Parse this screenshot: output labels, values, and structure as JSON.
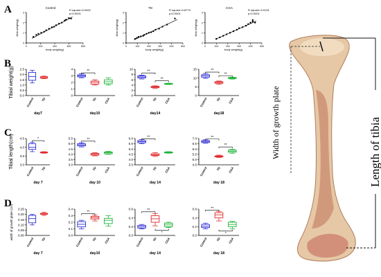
{
  "panel_letters": {
    "A": "A",
    "B": "B",
    "C": "C",
    "D": "D"
  },
  "colors": {
    "Control": "#2b2bd6",
    "TD": "#e0272b",
    "CGA": "#1fb33a",
    "bone": "#e8c9a8",
    "bone_dark": "#b86a4f"
  },
  "photo": {
    "label_length": "Length of tibia",
    "label_width": "Width of growth plate"
  },
  "chart_data": [
    {
      "type": "scatter",
      "panel": "A",
      "title": "Control",
      "xlabel": "body weight(g)",
      "ylabel": "tibia weight(g)",
      "annotation": [
        "R square=0.9492",
        "p<0.0001"
      ],
      "xticks": [
        "0",
        "200",
        "400",
        "600",
        "800"
      ],
      "xlim": [
        0,
        800
      ],
      "yticks": [
        "0",
        "1",
        "2",
        "3"
      ],
      "ylim": [
        0,
        3
      ],
      "points": [
        [
          100,
          0.6
        ],
        [
          140,
          0.8
        ],
        [
          170,
          0.9
        ],
        [
          210,
          1.0
        ],
        [
          250,
          1.1
        ],
        [
          280,
          1.25
        ],
        [
          320,
          1.4
        ],
        [
          360,
          1.55
        ],
        [
          390,
          1.6
        ],
        [
          420,
          1.75
        ],
        [
          460,
          1.9
        ],
        [
          500,
          2.0
        ],
        [
          540,
          2.2
        ],
        [
          560,
          2.3
        ],
        [
          600,
          2.45
        ],
        [
          630,
          2.4
        ]
      ],
      "fit": [
        [
          80,
          0.45
        ],
        [
          650,
          2.55
        ]
      ]
    },
    {
      "type": "scatter",
      "panel": "A",
      "title": "TD",
      "xlabel": "body weight(g)",
      "ylabel": "tibia weight(g)",
      "annotation": [
        "R square=0.8779",
        "p<0.0001"
      ],
      "xticks": [
        "0",
        "100",
        "200",
        "300",
        "400",
        "500"
      ],
      "xlim": [
        0,
        500
      ],
      "yticks": [
        "0",
        "1",
        "2",
        "3"
      ],
      "ylim": [
        0,
        3
      ],
      "points": [
        [
          80,
          0.4
        ],
        [
          95,
          0.5
        ],
        [
          110,
          0.6
        ],
        [
          130,
          0.65
        ],
        [
          150,
          0.7
        ],
        [
          160,
          0.8
        ],
        [
          180,
          0.9
        ],
        [
          200,
          1.0
        ],
        [
          220,
          1.05
        ],
        [
          240,
          1.15
        ],
        [
          260,
          1.3
        ],
        [
          290,
          1.4
        ],
        [
          320,
          1.6
        ],
        [
          360,
          1.8
        ],
        [
          430,
          2.4
        ]
      ],
      "fit": [
        [
          70,
          0.3
        ],
        [
          450,
          2.3
        ]
      ]
    },
    {
      "type": "scatter",
      "panel": "A",
      "title": "CGA",
      "xlabel": "body weight(g)",
      "ylabel": "tibia weight(g)",
      "annotation": [
        "R square=0.9191",
        "p<0.0001"
      ],
      "xticks": [
        "0",
        "100",
        "200",
        "300",
        "400",
        "500"
      ],
      "xlim": [
        0,
        500
      ],
      "yticks": [
        "0",
        "1",
        "2",
        "3"
      ],
      "ylim": [
        0,
        3
      ],
      "points": [
        [
          100,
          0.4
        ],
        [
          130,
          0.55
        ],
        [
          160,
          0.7
        ],
        [
          190,
          0.85
        ],
        [
          220,
          1.0
        ],
        [
          250,
          1.15
        ],
        [
          280,
          1.3
        ],
        [
          300,
          1.45
        ],
        [
          330,
          1.55
        ],
        [
          360,
          1.7
        ],
        [
          380,
          1.85
        ],
        [
          400,
          2.0
        ],
        [
          420,
          2.1
        ],
        [
          420,
          2.25
        ],
        [
          440,
          2.0
        ]
      ],
      "fit": [
        [
          90,
          0.35
        ],
        [
          450,
          2.15
        ]
      ]
    },
    {
      "type": "boxplot",
      "panel": "B",
      "ylabel": "Tibial weight(g)",
      "title": "day7",
      "ylim": [
        0,
        2.5
      ],
      "yticks": [
        "0.0",
        "0.5",
        "1.0",
        "1.5",
        "2.0",
        "2.5"
      ],
      "categories": [
        "Control",
        "TD"
      ],
      "boxes": [
        [
          1.2,
          1.45,
          1.8,
          2.2,
          2.4
        ],
        [
          1.6,
          1.65,
          1.72,
          1.8,
          1.85
        ]
      ],
      "sig": []
    },
    {
      "type": "boxplot",
      "panel": "B",
      "title": "day10",
      "ylim": [
        0,
        4
      ],
      "yticks": [
        "0",
        "1",
        "2",
        "3",
        "4"
      ],
      "categories": [
        "Control",
        "TD",
        "CGA"
      ],
      "boxes": [
        [
          2.7,
          2.85,
          3.0,
          3.15,
          3.3
        ],
        [
          1.6,
          1.75,
          2.0,
          2.2,
          2.4
        ],
        [
          1.6,
          1.8,
          2.1,
          2.4,
          2.7
        ]
      ],
      "sig": [
        {
          "from": 0,
          "to": 1,
          "text": "**",
          "y": 3.45
        }
      ]
    },
    {
      "type": "boxplot",
      "panel": "B",
      "title": "day14",
      "ylim": [
        0,
        10
      ],
      "yticks": [
        "0",
        "2",
        "4",
        "6",
        "8",
        "10"
      ],
      "categories": [
        "Control",
        "TD",
        "CGA"
      ],
      "boxes": [
        [
          6.3,
          6.7,
          7.1,
          7.5,
          7.8
        ],
        [
          2.8,
          3.0,
          3.3,
          3.5,
          3.7
        ],
        [
          4.2,
          4.3,
          4.45,
          4.6,
          4.7
        ]
      ],
      "sig": [
        {
          "from": 0,
          "to": 1,
          "text": "**",
          "y": 8.6
        },
        {
          "from": 1,
          "to": 2,
          "text": "**",
          "y": 5.6
        }
      ]
    },
    {
      "type": "boxplot",
      "panel": "B",
      "title": "day18",
      "ylim": [
        0,
        15
      ],
      "yticks": [
        "0",
        "5",
        "10",
        "15"
      ],
      "categories": [
        "Control",
        "TD",
        "CGA"
      ],
      "boxes": [
        [
          9.8,
          10.5,
          11.2,
          11.9,
          12.6
        ],
        [
          6.4,
          7.0,
          7.5,
          7.9,
          8.3
        ],
        [
          9.4,
          9.7,
          10.0,
          10.3,
          10.5
        ]
      ],
      "sig": [
        {
          "from": 0,
          "to": 1,
          "text": "**",
          "y": 13.4
        },
        {
          "from": 1,
          "to": 2,
          "text": "**",
          "y": 11.3
        }
      ]
    },
    {
      "type": "boxplot",
      "panel": "C",
      "ylabel": "Tibial length(cm)",
      "title": "day 7",
      "ylim": [
        3.0,
        4.5
      ],
      "yticks": [
        "3.0",
        "3.5",
        "4.0",
        "4.5"
      ],
      "categories": [
        "Control",
        "TD"
      ],
      "boxes": [
        [
          3.75,
          3.88,
          4.0,
          4.2,
          4.28
        ],
        [
          3.66,
          3.68,
          3.7,
          3.73,
          3.75
        ]
      ],
      "sig": [
        {
          "from": 0,
          "to": 1,
          "text": "*",
          "y": 4.38
        }
      ]
    },
    {
      "type": "boxplot",
      "panel": "C",
      "title": "day 10",
      "ylim": [
        3.0,
        5.5
      ],
      "yticks": [
        "3.0",
        "3.5",
        "4.0",
        "4.5",
        "5.0",
        "5.5"
      ],
      "categories": [
        "Control",
        "TD",
        "CGA"
      ],
      "boxes": [
        [
          4.7,
          4.8,
          4.9,
          5.0,
          5.1
        ],
        [
          3.85,
          3.92,
          4.0,
          4.08,
          4.15
        ],
        [
          4.0,
          4.05,
          4.15,
          4.22,
          4.28
        ]
      ],
      "sig": [
        {
          "from": 0,
          "to": 1,
          "text": "**",
          "y": 5.25
        }
      ]
    },
    {
      "type": "boxplot",
      "panel": "C",
      "title": "day 14",
      "ylim": [
        3.5,
        6.0
      ],
      "yticks": [
        "3.5",
        "4.0",
        "4.5",
        "5.0",
        "5.5",
        "6.0"
      ],
      "categories": [
        "Control",
        "TD",
        "CGA"
      ],
      "boxes": [
        [
          5.5,
          5.6,
          5.7,
          5.8,
          5.9
        ],
        [
          4.3,
          4.38,
          4.45,
          4.55,
          4.65
        ],
        [
          4.6,
          4.63,
          4.68,
          4.72,
          4.75
        ]
      ],
      "sig": [
        {
          "from": 0,
          "to": 1,
          "text": "**",
          "y": 5.97
        }
      ]
    },
    {
      "type": "boxplot",
      "panel": "C",
      "title": "day 18",
      "ylim": [
        4.5,
        7.0
      ],
      "yticks": [
        "4.5",
        "5.0",
        "5.5",
        "6.0",
        "6.5",
        "7.0"
      ],
      "categories": [
        "Control",
        "TD",
        "CGA"
      ],
      "boxes": [
        [
          6.55,
          6.62,
          6.72,
          6.8,
          6.88
        ],
        [
          5.2,
          5.25,
          5.3,
          5.35,
          5.42
        ],
        [
          5.6,
          5.7,
          5.8,
          5.9,
          5.98
        ]
      ],
      "sig": [
        {
          "from": 0,
          "to": 1,
          "text": "**",
          "y": 6.95
        },
        {
          "from": 1,
          "to": 2,
          "text": "**",
          "y": 6.2
        }
      ]
    },
    {
      "type": "boxplot",
      "panel": "D",
      "ylabel": "width of growth plate (cm)",
      "title": "day 7",
      "ylim": [
        0,
        0.25
      ],
      "yticks": [
        "0.00",
        "0.05",
        "0.10",
        "0.15",
        "0.20",
        "0.25"
      ],
      "categories": [
        "Control",
        "TD"
      ],
      "boxes": [
        [
          0.1,
          0.12,
          0.16,
          0.19,
          0.2
        ],
        [
          0.19,
          0.2,
          0.205,
          0.21,
          0.22
        ]
      ],
      "sig": []
    },
    {
      "type": "boxplot",
      "panel": "D",
      "title": "day10",
      "ylim": [
        0,
        0.4
      ],
      "yticks": [
        "0.0",
        "0.1",
        "0.2",
        "0.3",
        "0.4"
      ],
      "categories": [
        "Control",
        "TD",
        "CGA"
      ],
      "boxes": [
        [
          0.1,
          0.13,
          0.17,
          0.21,
          0.23
        ],
        [
          0.22,
          0.25,
          0.27,
          0.29,
          0.31
        ],
        [
          0.14,
          0.18,
          0.23,
          0.26,
          0.3
        ]
      ],
      "sig": [
        {
          "from": 0,
          "to": 1,
          "text": "**",
          "y": 0.33
        }
      ]
    },
    {
      "type": "boxplot",
      "panel": "D",
      "title": "day 14",
      "ylim": [
        0,
        0.6
      ],
      "yticks": [
        "0.0",
        "0.2",
        "0.4",
        "0.6"
      ],
      "categories": [
        "Control",
        "TD",
        "CGA"
      ],
      "boxes": [
        [
          0.15,
          0.17,
          0.2,
          0.23,
          0.25
        ],
        [
          0.22,
          0.3,
          0.38,
          0.45,
          0.5
        ],
        [
          0.18,
          0.2,
          0.24,
          0.28,
          0.3
        ]
      ],
      "sig": [
        {
          "from": 0,
          "to": 1,
          "text": "**",
          "y": 0.54
        },
        {
          "from": 1,
          "to": 2,
          "text": "*",
          "y": 0.12,
          "below": true
        }
      ]
    },
    {
      "type": "boxplot",
      "panel": "D",
      "title": "day 18",
      "ylim": [
        0,
        0.6
      ],
      "yticks": [
        "0.0",
        "0.2",
        "0.4",
        "0.6"
      ],
      "categories": [
        "Control",
        "TD",
        "CGA"
      ],
      "boxes": [
        [
          0.15,
          0.18,
          0.21,
          0.25,
          0.28
        ],
        [
          0.33,
          0.4,
          0.47,
          0.52,
          0.55
        ],
        [
          0.15,
          0.2,
          0.25,
          0.3,
          0.32
        ]
      ],
      "sig": [
        {
          "from": 0,
          "to": 1,
          "text": "**",
          "y": 0.58
        },
        {
          "from": 1,
          "to": 2,
          "text": "*",
          "y": 0.1,
          "below": true
        }
      ]
    }
  ]
}
